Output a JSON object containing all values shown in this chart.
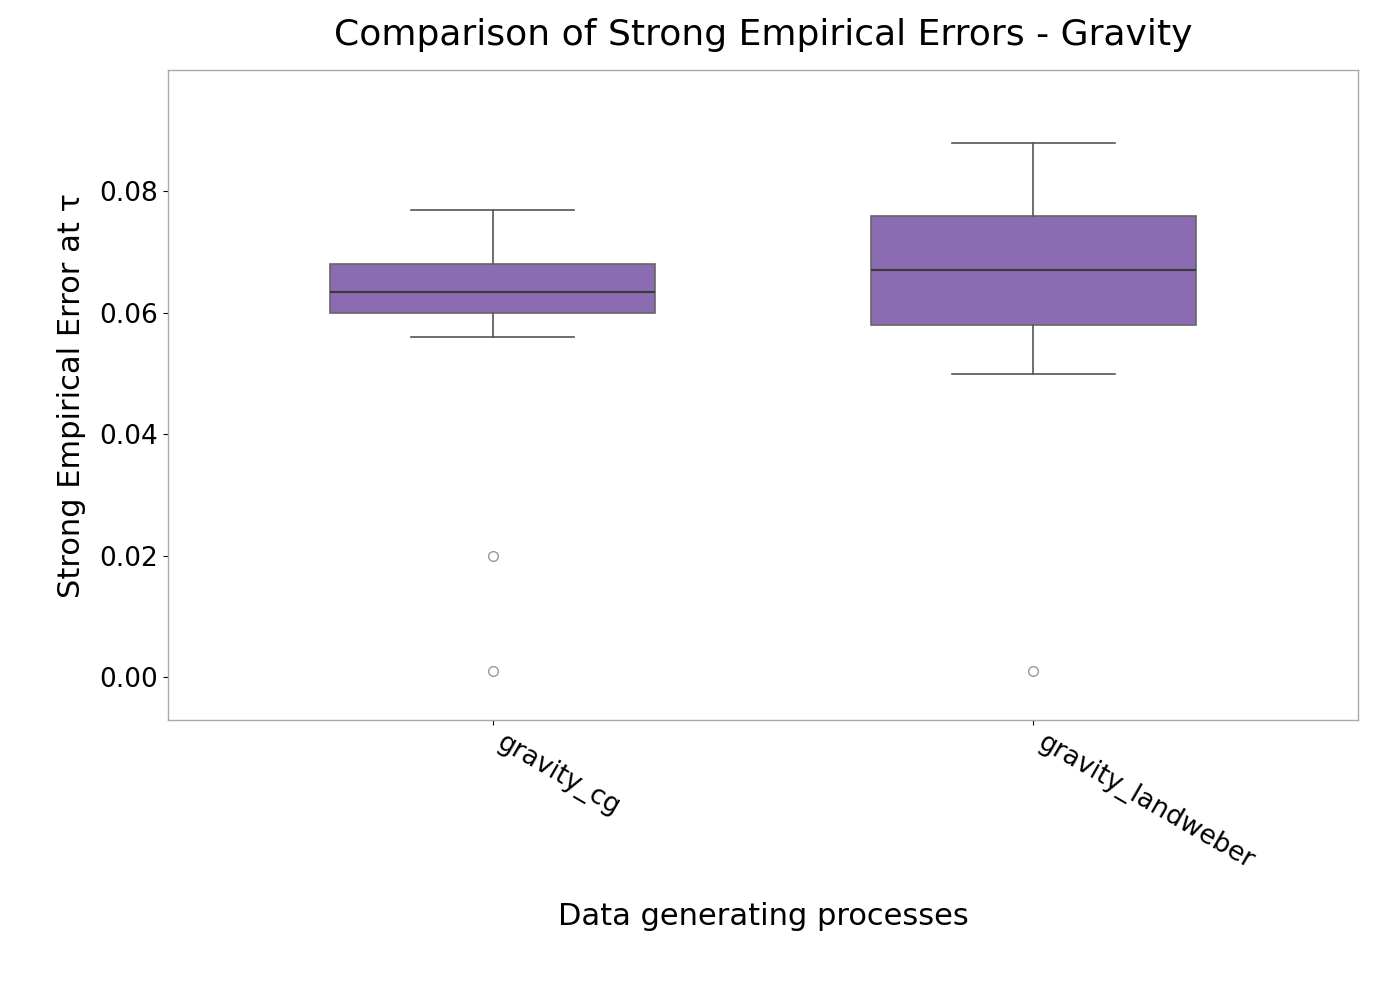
{
  "title": "Comparison of Strong Empirical Errors - Gravity",
  "xlabel": "Data generating processes",
  "ylabel": "Strong Empirical Error at τ",
  "box_color": "#8B6BB1",
  "median_color": "#3a3a3a",
  "whisker_color": "#555555",
  "flier_color": "#999999",
  "background_color": "#ffffff",
  "categories": [
    "gravity_cg",
    "gravity_landweber"
  ],
  "gravity_cg": {
    "q1": 0.06,
    "median": 0.0635,
    "q3": 0.068,
    "whislo": 0.056,
    "whishi": 0.077,
    "fliers": [
      0.02,
      0.001
    ]
  },
  "gravity_landweber": {
    "q1": 0.058,
    "median": 0.067,
    "q3": 0.076,
    "whislo": 0.05,
    "whishi": 0.088,
    "fliers": [
      0.001
    ]
  },
  "ylim": [
    -0.007,
    0.1
  ],
  "yticks": [
    0.0,
    0.02,
    0.04,
    0.06,
    0.08
  ],
  "title_fontsize": 26,
  "label_fontsize": 22,
  "tick_fontsize": 19,
  "figsize": [
    14,
    10
  ],
  "dpi": 100,
  "box_width": 0.6,
  "positions": [
    1,
    2
  ],
  "xlim": [
    0.4,
    2.6
  ]
}
